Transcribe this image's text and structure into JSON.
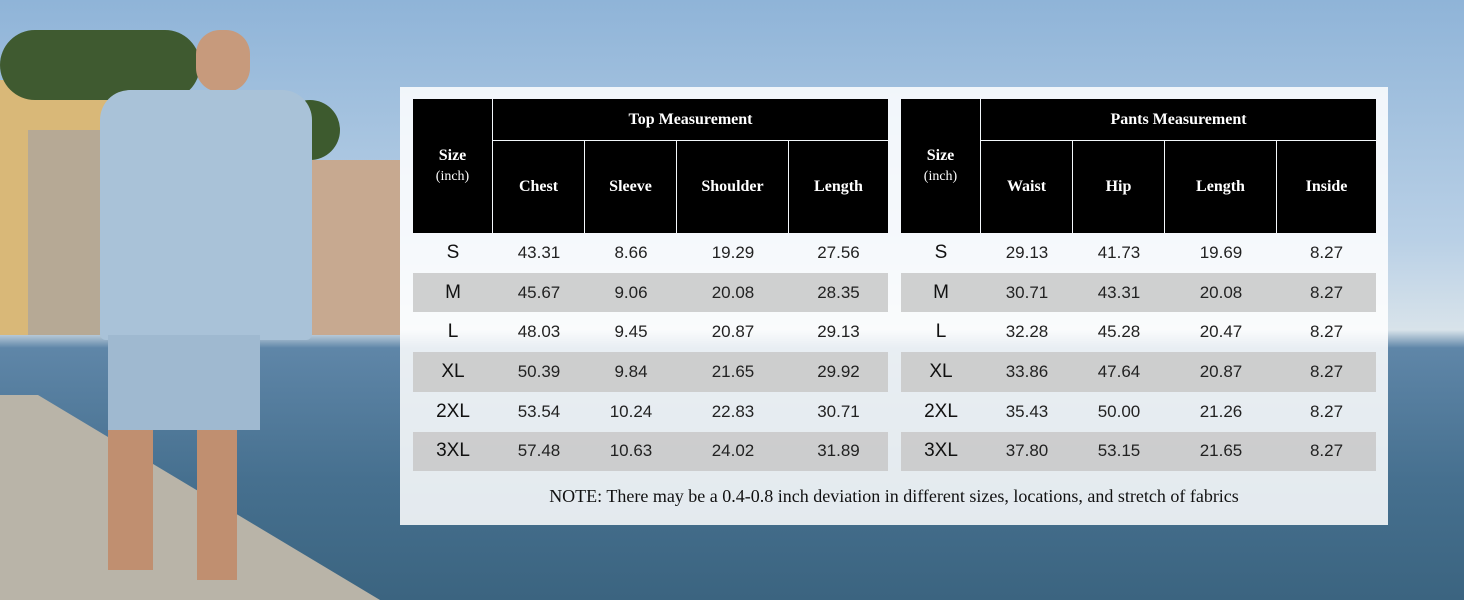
{
  "tables": [
    {
      "size_label": "Size",
      "size_unit": "(inch)",
      "group": "Top Measurement",
      "columns": [
        "Chest",
        "Sleeve",
        "Shoulder",
        "Length"
      ],
      "rows": [
        [
          "S",
          "43.31",
          "8.66",
          "19.29",
          "27.56"
        ],
        [
          "M",
          "45.67",
          "9.06",
          "20.08",
          "28.35"
        ],
        [
          "L",
          "48.03",
          "9.45",
          "20.87",
          "29.13"
        ],
        [
          "XL",
          "50.39",
          "9.84",
          "21.65",
          "29.92"
        ],
        [
          "2XL",
          "53.54",
          "10.24",
          "22.83",
          "30.71"
        ],
        [
          "3XL",
          "57.48",
          "10.63",
          "24.02",
          "31.89"
        ]
      ]
    },
    {
      "size_label": "Size",
      "size_unit": "(inch)",
      "group": "Pants Measurement",
      "columns": [
        "Waist",
        "Hip",
        "Length",
        "Inside"
      ],
      "rows": [
        [
          "S",
          "29.13",
          "41.73",
          "19.69",
          "8.27"
        ],
        [
          "M",
          "30.71",
          "43.31",
          "20.08",
          "8.27"
        ],
        [
          "L",
          "32.28",
          "45.28",
          "20.47",
          "8.27"
        ],
        [
          "XL",
          "33.86",
          "47.64",
          "20.87",
          "8.27"
        ],
        [
          "2XL",
          "35.43",
          "50.00",
          "21.26",
          "8.27"
        ],
        [
          "3XL",
          "37.80",
          "53.15",
          "21.65",
          "8.27"
        ]
      ]
    }
  ],
  "note": "NOTE: There may be a 0.4-0.8 inch deviation in different sizes, locations, and stretch of fabrics"
}
